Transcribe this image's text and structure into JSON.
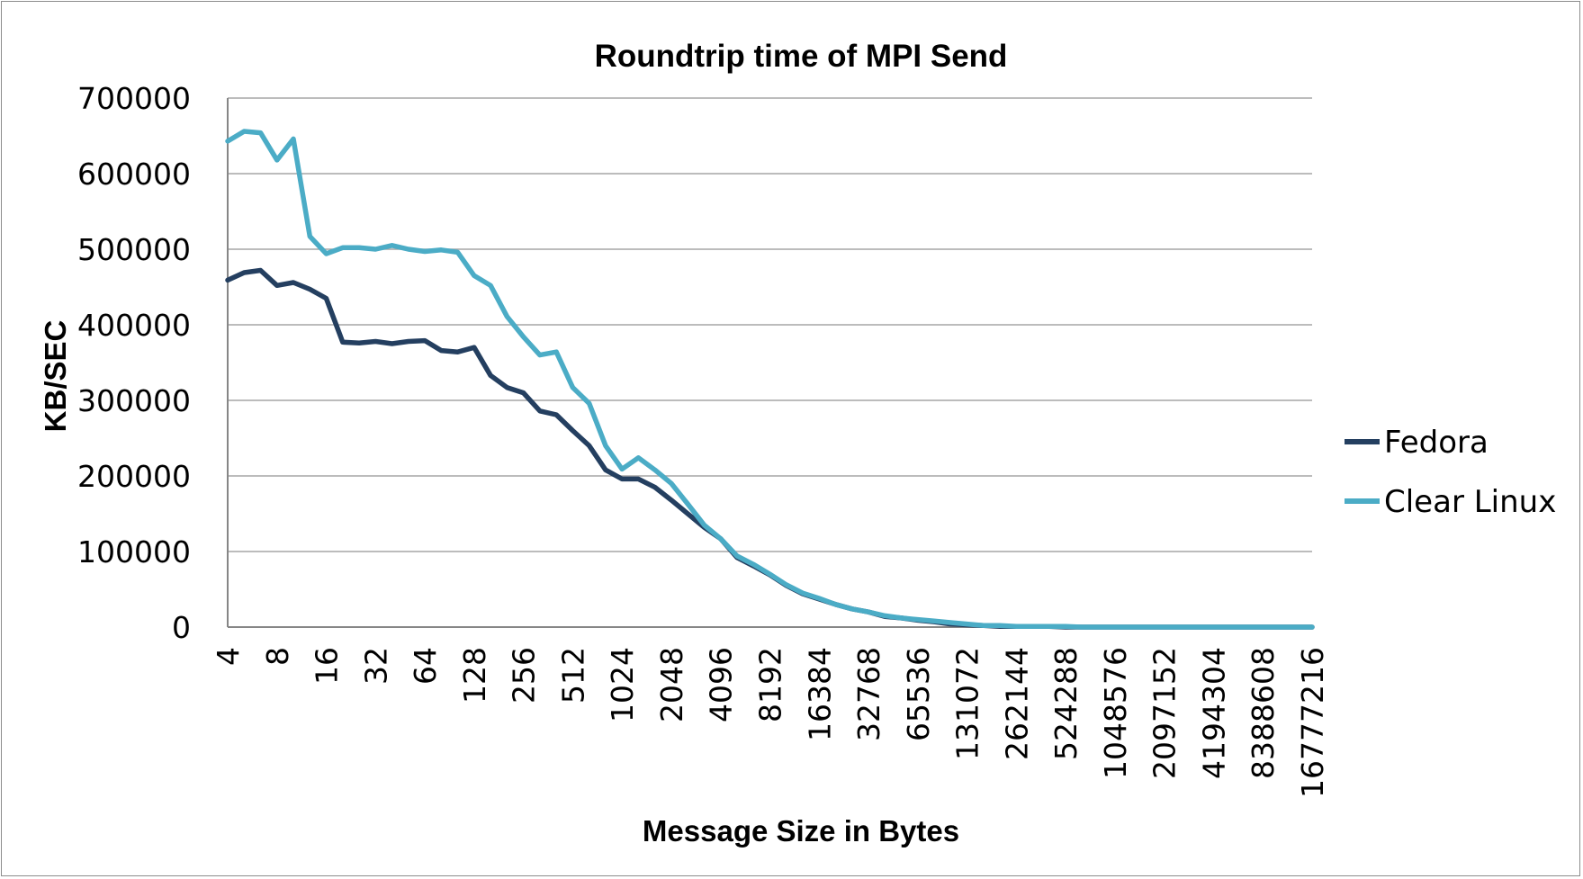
{
  "chart_data": {
    "type": "line",
    "title": "Roundtrip time of MPI Send",
    "xlabel": "Message Size in Bytes",
    "ylabel": "KB/SEC",
    "ylim": [
      0,
      700000
    ],
    "y_ticks": [
      "0",
      "100000",
      "200000",
      "300000",
      "400000",
      "500000",
      "600000",
      "700000"
    ],
    "grid": "horizontal",
    "legend_position": "right",
    "x_tick_labels": [
      "4",
      "8",
      "16",
      "32",
      "64",
      "128",
      "256",
      "512",
      "1024",
      "2048",
      "4096",
      "8192",
      "16384",
      "32768",
      "65536",
      "131072",
      "262144",
      "524288",
      "1048576",
      "2097152",
      "4194304",
      "8388608",
      "16777216"
    ],
    "n_points": 67,
    "series": [
      {
        "name": "Fedora",
        "color": "#243f60",
        "values": [
          459000,
          469000,
          472000,
          452000,
          456000,
          447000,
          435000,
          377000,
          376000,
          378000,
          375000,
          378000,
          379000,
          366000,
          364000,
          370000,
          333000,
          317000,
          310000,
          286000,
          281000,
          260000,
          240000,
          208000,
          196000,
          196000,
          185000,
          168000,
          150000,
          132000,
          117000,
          92000,
          81000,
          69000,
          55000,
          44000,
          37000,
          30000,
          24000,
          20000,
          14000,
          12000,
          9000,
          7000,
          4000,
          3000,
          2000,
          1000,
          1000,
          1000,
          1000,
          0,
          0,
          0,
          0,
          0,
          0,
          0,
          0,
          0,
          0,
          0,
          0,
          0,
          0,
          0,
          0
        ]
      },
      {
        "name": "Clear Linux",
        "color": "#4bacc6",
        "values": [
          643000,
          656000,
          654000,
          618000,
          646000,
          517000,
          494000,
          502000,
          502000,
          500000,
          505000,
          500000,
          497000,
          499000,
          496000,
          465000,
          452000,
          411000,
          384000,
          360000,
          364000,
          317000,
          296000,
          240000,
          209000,
          224000,
          208000,
          190000,
          163000,
          135000,
          117000,
          94000,
          83000,
          70000,
          56000,
          45000,
          38000,
          30000,
          24000,
          20000,
          15000,
          12000,
          10000,
          8000,
          6000,
          4000,
          2000,
          2000,
          1000,
          1000,
          1000,
          1000,
          0,
          0,
          0,
          0,
          0,
          0,
          0,
          0,
          0,
          0,
          0,
          0,
          0,
          0,
          0
        ]
      }
    ]
  }
}
